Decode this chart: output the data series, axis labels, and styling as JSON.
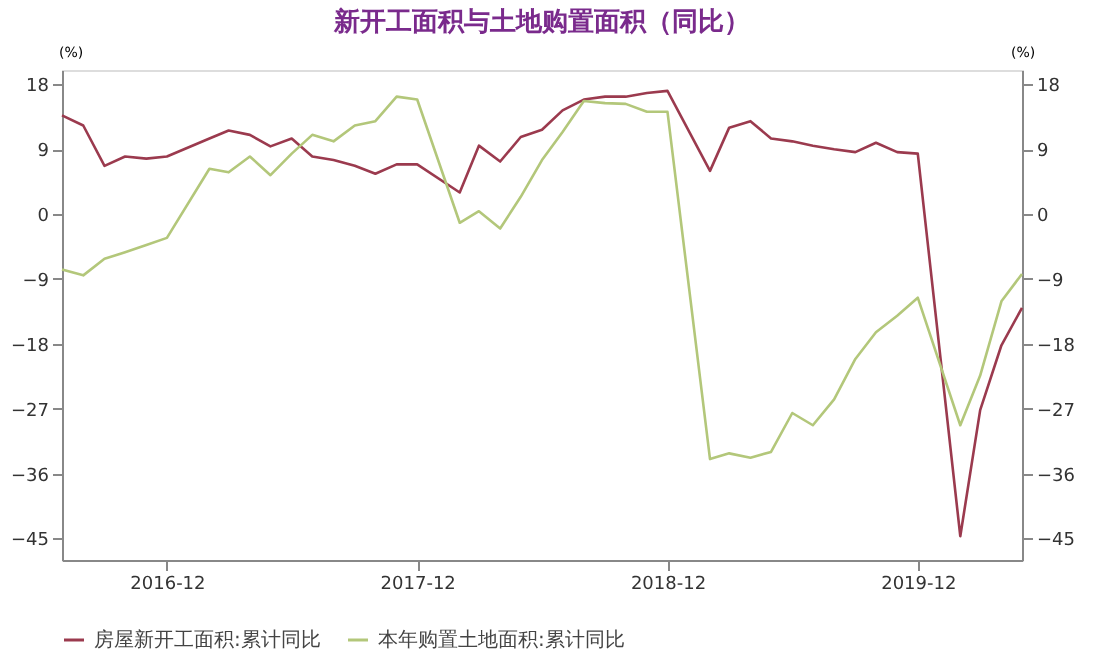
{
  "chart_data": {
    "type": "line",
    "title": "新开工面积与土地购置面积（同比）",
    "ylabel": "(%)",
    "y2label": "(%)",
    "xlim": [
      "2016-07",
      "2020-05"
    ],
    "xticks": [
      "2016-12",
      "2017-12",
      "2018-12",
      "2019-12"
    ],
    "ylim": [
      -48,
      20
    ],
    "yticks": [
      -45,
      -36,
      -27,
      -18,
      -9,
      0,
      9,
      18
    ],
    "y2lim": [
      -48,
      20
    ],
    "y2ticks": [
      -45,
      -36,
      -27,
      -18,
      -9,
      0,
      9,
      18
    ],
    "grid": false,
    "legend": "bottom",
    "marker": "none",
    "line_style": "solid",
    "x": [
      "2016-07",
      "2016-08",
      "2016-09",
      "2016-10",
      "2016-11",
      "2016-12",
      "2017-02",
      "2017-03",
      "2017-04",
      "2017-05",
      "2017-06",
      "2017-07",
      "2017-08",
      "2017-09",
      "2017-10",
      "2017-11",
      "2017-12",
      "2018-02",
      "2018-03",
      "2018-04",
      "2018-05",
      "2018-06",
      "2018-07",
      "2018-08",
      "2018-09",
      "2018-10",
      "2018-11",
      "2018-12",
      "2019-02",
      "2019-03",
      "2019-04",
      "2019-05",
      "2019-06",
      "2019-07",
      "2019-08",
      "2019-09",
      "2019-10",
      "2019-11",
      "2019-12",
      "2020-02",
      "2020-03",
      "2020-04",
      "2020-05"
    ],
    "series": [
      {
        "name": "房屋新开工面积:累计同比",
        "color": "#9b3a4e",
        "values": [
          13.7,
          12.3,
          6.7,
          8,
          7.7,
          8,
          10.5,
          11.6,
          11,
          9.4,
          10.5,
          8,
          7.5,
          6.7,
          5.6,
          6.9,
          6.9,
          3,
          9.5,
          7.3,
          10.7,
          11.7,
          14.4,
          15.9,
          16.3,
          16.3,
          16.8,
          17.1,
          6,
          12,
          12.9,
          10.5,
          10.1,
          9.5,
          9,
          8.6,
          9.9,
          8.6,
          8.4,
          -44.7,
          -27.2,
          -18.2,
          -13
        ]
      },
      {
        "name": "本年购置土地面积:累计同比",
        "color": "#b3c77a",
        "values": [
          -7.7,
          -8.5,
          -6.2,
          -5.3,
          -4.3,
          -3.3,
          6.3,
          5.8,
          8,
          5.4,
          8.4,
          11,
          10.1,
          12.3,
          12.9,
          16.3,
          15.9,
          -1.2,
          0.4,
          -2,
          2.4,
          7.5,
          11.4,
          15.7,
          15.4,
          15.3,
          14.2,
          14.2,
          -34,
          -33.2,
          -33.8,
          -33,
          -27.6,
          -29.3,
          -25.7,
          -20.1,
          -16.4,
          -14.1,
          -11.6,
          -29.3,
          -22.4,
          -12.1,
          -8.3
        ]
      }
    ]
  }
}
